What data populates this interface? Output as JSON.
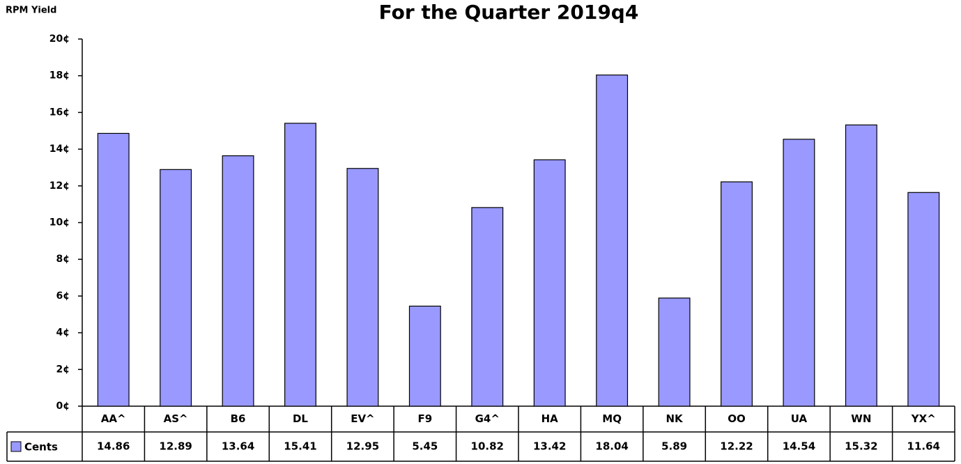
{
  "chart_data": {
    "type": "bar",
    "title": "For the Quarter 2019q4",
    "y_label": "RPM Yield",
    "categories": [
      "AA^",
      "AS^",
      "B6",
      "DL",
      "EV^",
      "F9",
      "G4^",
      "HA",
      "MQ",
      "NK",
      "OO",
      "UA",
      "WN",
      "YX^"
    ],
    "series": [
      {
        "name": "Cents",
        "color": "#9999ff",
        "values": [
          14.86,
          12.89,
          13.64,
          15.41,
          12.95,
          5.45,
          10.82,
          13.42,
          18.04,
          5.89,
          12.22,
          14.54,
          15.32,
          11.64
        ]
      }
    ],
    "ylim": [
      0,
      20
    ],
    "yticks": [
      {
        "value": 0,
        "label": "0¢"
      },
      {
        "value": 2,
        "label": "2¢"
      },
      {
        "value": 4,
        "label": "4¢"
      },
      {
        "value": 6,
        "label": "6¢"
      },
      {
        "value": 8,
        "label": "8¢"
      },
      {
        "value": 10,
        "label": "10¢"
      },
      {
        "value": 12,
        "label": "12¢"
      },
      {
        "value": 14,
        "label": "14¢"
      },
      {
        "value": 16,
        "label": "16¢"
      },
      {
        "value": 18,
        "label": "18¢"
      },
      {
        "value": 20,
        "label": "20¢"
      }
    ],
    "grid": false
  }
}
